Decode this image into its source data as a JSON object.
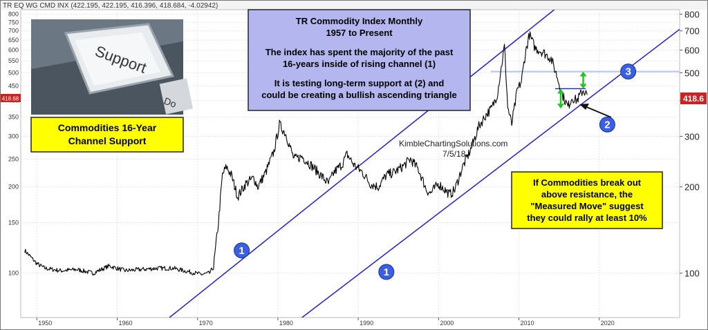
{
  "header": {
    "text": "TR EQ WG CMD INX (422.195, 422.195, 416.396, 418.684, -4.02942)"
  },
  "price_tag": "418.6",
  "price_tag_left": "418.68",
  "title_box": {
    "line1": "TR Commodity Index Monthly",
    "line2": "1957 to Present",
    "line3": "The index has spent the majority of the past",
    "line4": "16-years inside of rising channel (1)",
    "line5": "It is testing long-term support at (2) and",
    "line6": "could be creating a bullish ascending triangle"
  },
  "photo": {
    "key_label": "Support",
    "key_fragment": "Do"
  },
  "left_box": {
    "line1": "Commodities 16-Year",
    "line2": "Channel Support"
  },
  "right_box": {
    "line1": "If Commodities break out",
    "line2": "above resistance, the",
    "line3": "\"Measured Move\" suggest",
    "line4": "they could rally at least 10%"
  },
  "watermark": {
    "line1": "KimbleChartingSolutions.com",
    "line2": "7/5/18"
  },
  "markers": [
    {
      "label": "1",
      "year": 1975.5,
      "value": 120
    },
    {
      "label": "1",
      "year": 1993.5,
      "value": 101
    },
    {
      "label": "2",
      "year": 2021,
      "value": 330
    },
    {
      "label": "3",
      "year": 2023.6,
      "value": 505
    }
  ],
  "colors": {
    "channel": "#1f1fcc",
    "resistance": "#b8c4ec",
    "arrow": "#22c422",
    "box_blue": "#b4b6ef",
    "box_yellow": "#ffff00",
    "marker": "#3a5fe0",
    "price": "#000000",
    "price_tag_bg": "#cc2222"
  },
  "chart_data": {
    "type": "line",
    "title": "TR Commodity Index Monthly",
    "subtitle": "1957 to Present",
    "xlim": [
      1948,
      2030
    ],
    "ylim": [
      70,
      830
    ],
    "yscale": "log",
    "x_ticks": [
      1950,
      1960,
      1970,
      1980,
      1990,
      2000,
      2010,
      2020
    ],
    "y_ticks_left": [
      100,
      150,
      200,
      250,
      300,
      350,
      400,
      450,
      500,
      550,
      600,
      650,
      700,
      750,
      800
    ],
    "y_ticks_right": [
      100,
      200,
      300,
      400,
      500,
      600,
      700,
      800
    ],
    "grid": true,
    "series": [
      {
        "x": [
          1948.5,
          1950,
          1951,
          1953,
          1955,
          1957,
          1959,
          1961,
          1963,
          1965,
          1967,
          1969,
          1970.5,
          1971.5,
          1972,
          1972.6,
          1973.1,
          1973.6,
          1974.2,
          1975,
          1976,
          1977,
          1977.5,
          1978.5,
          1979.5,
          1980.2,
          1981,
          1982,
          1983,
          1984,
          1985,
          1986.3,
          1987,
          1988,
          1988.6,
          1989.5,
          1990.5,
          1991.5,
          1992.5,
          1993.5,
          1994.5,
          1995.5,
          1996.5,
          1997.5,
          1998.5,
          1999,
          2000,
          2001.4,
          2002,
          2003,
          2004,
          2005,
          2006,
          2006.6,
          2007.3,
          2008.2,
          2008.6,
          2009.1,
          2009.8,
          2010.3,
          2010.8,
          2011.3,
          2012,
          2013,
          2014,
          2014.7,
          2015.4,
          2016.1,
          2016.6,
          2017.2,
          2018.0,
          2018.5
        ],
        "y": [
          120,
          108,
          104,
          102,
          103,
          100,
          106,
          102,
          103,
          104,
          104,
          101,
          99,
          100,
          105,
          150,
          220,
          235,
          220,
          185,
          205,
          215,
          200,
          225,
          265,
          330,
          305,
          250,
          255,
          240,
          225,
          205,
          225,
          240,
          260,
          238,
          225,
          205,
          200,
          220,
          225,
          235,
          250,
          230,
          195,
          190,
          205,
          188,
          195,
          235,
          270,
          325,
          360,
          375,
          420,
          620,
          380,
          330,
          435,
          465,
          585,
          680,
          610,
          590,
          560,
          490,
          420,
          380,
          410,
          400,
          435,
          418.684
        ]
      }
    ],
    "channel_lines": [
      {
        "name": "1",
        "points": [
          [
            1966.5,
            70
          ],
          [
            2014.4,
            830
          ]
        ]
      },
      {
        "name": "1",
        "points": [
          [
            1983,
            70
          ],
          [
            2030,
            709
          ]
        ]
      }
    ],
    "resistance_line": {
      "y": 505,
      "x_range": [
        2006.5,
        2030
      ]
    },
    "triangle_top": {
      "y": 440,
      "x_range": [
        2014.5,
        2018.3
      ]
    }
  }
}
